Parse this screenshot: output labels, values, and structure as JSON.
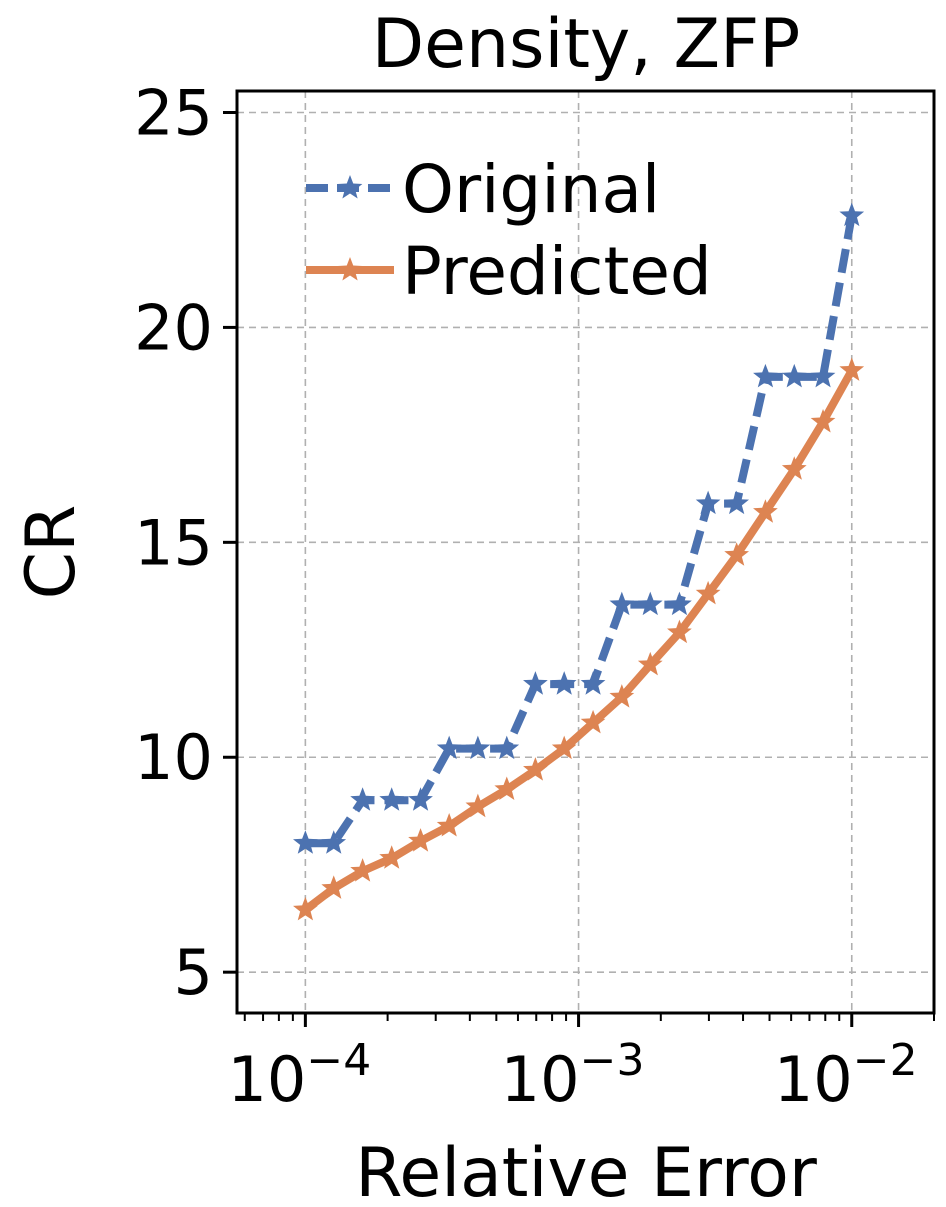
{
  "chart_data": {
    "type": "line",
    "title": "Density, ZFP",
    "xlabel": "Relative Error",
    "ylabel": "CR",
    "x_scale": "log",
    "xlim": [
      5.62e-05,
      0.02
    ],
    "ylim": [
      4.05,
      25.5
    ],
    "xticks": [
      {
        "value": 0.0001,
        "base": "10",
        "exp": "−4"
      },
      {
        "value": 0.001,
        "base": "10",
        "exp": "−3"
      },
      {
        "value": 0.01,
        "base": "10",
        "exp": "−2"
      }
    ],
    "yticks": [
      5,
      10,
      15,
      20,
      25
    ],
    "grid": true,
    "legend": "top-left",
    "series": [
      {
        "name": "Original",
        "color": "#4c72b0",
        "x": [
          0.0001,
          0.000127,
          0.000162,
          0.000207,
          0.000264,
          0.000336,
          0.000428,
          0.000546,
          0.000695,
          0.000886,
          0.00113,
          0.00144,
          0.00183,
          0.00234,
          0.00298,
          0.00379,
          0.00483,
          0.00616,
          0.00785,
          0.01
        ],
        "y": [
          8.0,
          8.0,
          9.0,
          9.0,
          9.0,
          10.2,
          10.2,
          10.2,
          11.7,
          11.7,
          11.7,
          13.55,
          13.55,
          13.55,
          15.9,
          15.9,
          18.85,
          18.85,
          18.85,
          22.6
        ]
      },
      {
        "name": "Predicted",
        "color": "#dd8452",
        "x": [
          0.0001,
          0.000127,
          0.000162,
          0.000207,
          0.000264,
          0.000336,
          0.000428,
          0.000546,
          0.000695,
          0.000886,
          0.00113,
          0.00144,
          0.00183,
          0.00234,
          0.00298,
          0.00379,
          0.00483,
          0.00616,
          0.00785,
          0.01
        ],
        "y": [
          6.45,
          6.95,
          7.35,
          7.65,
          8.05,
          8.4,
          8.85,
          9.25,
          9.7,
          10.2,
          10.8,
          11.4,
          12.15,
          12.9,
          13.8,
          14.7,
          15.7,
          16.7,
          17.8,
          19.0
        ]
      }
    ]
  }
}
